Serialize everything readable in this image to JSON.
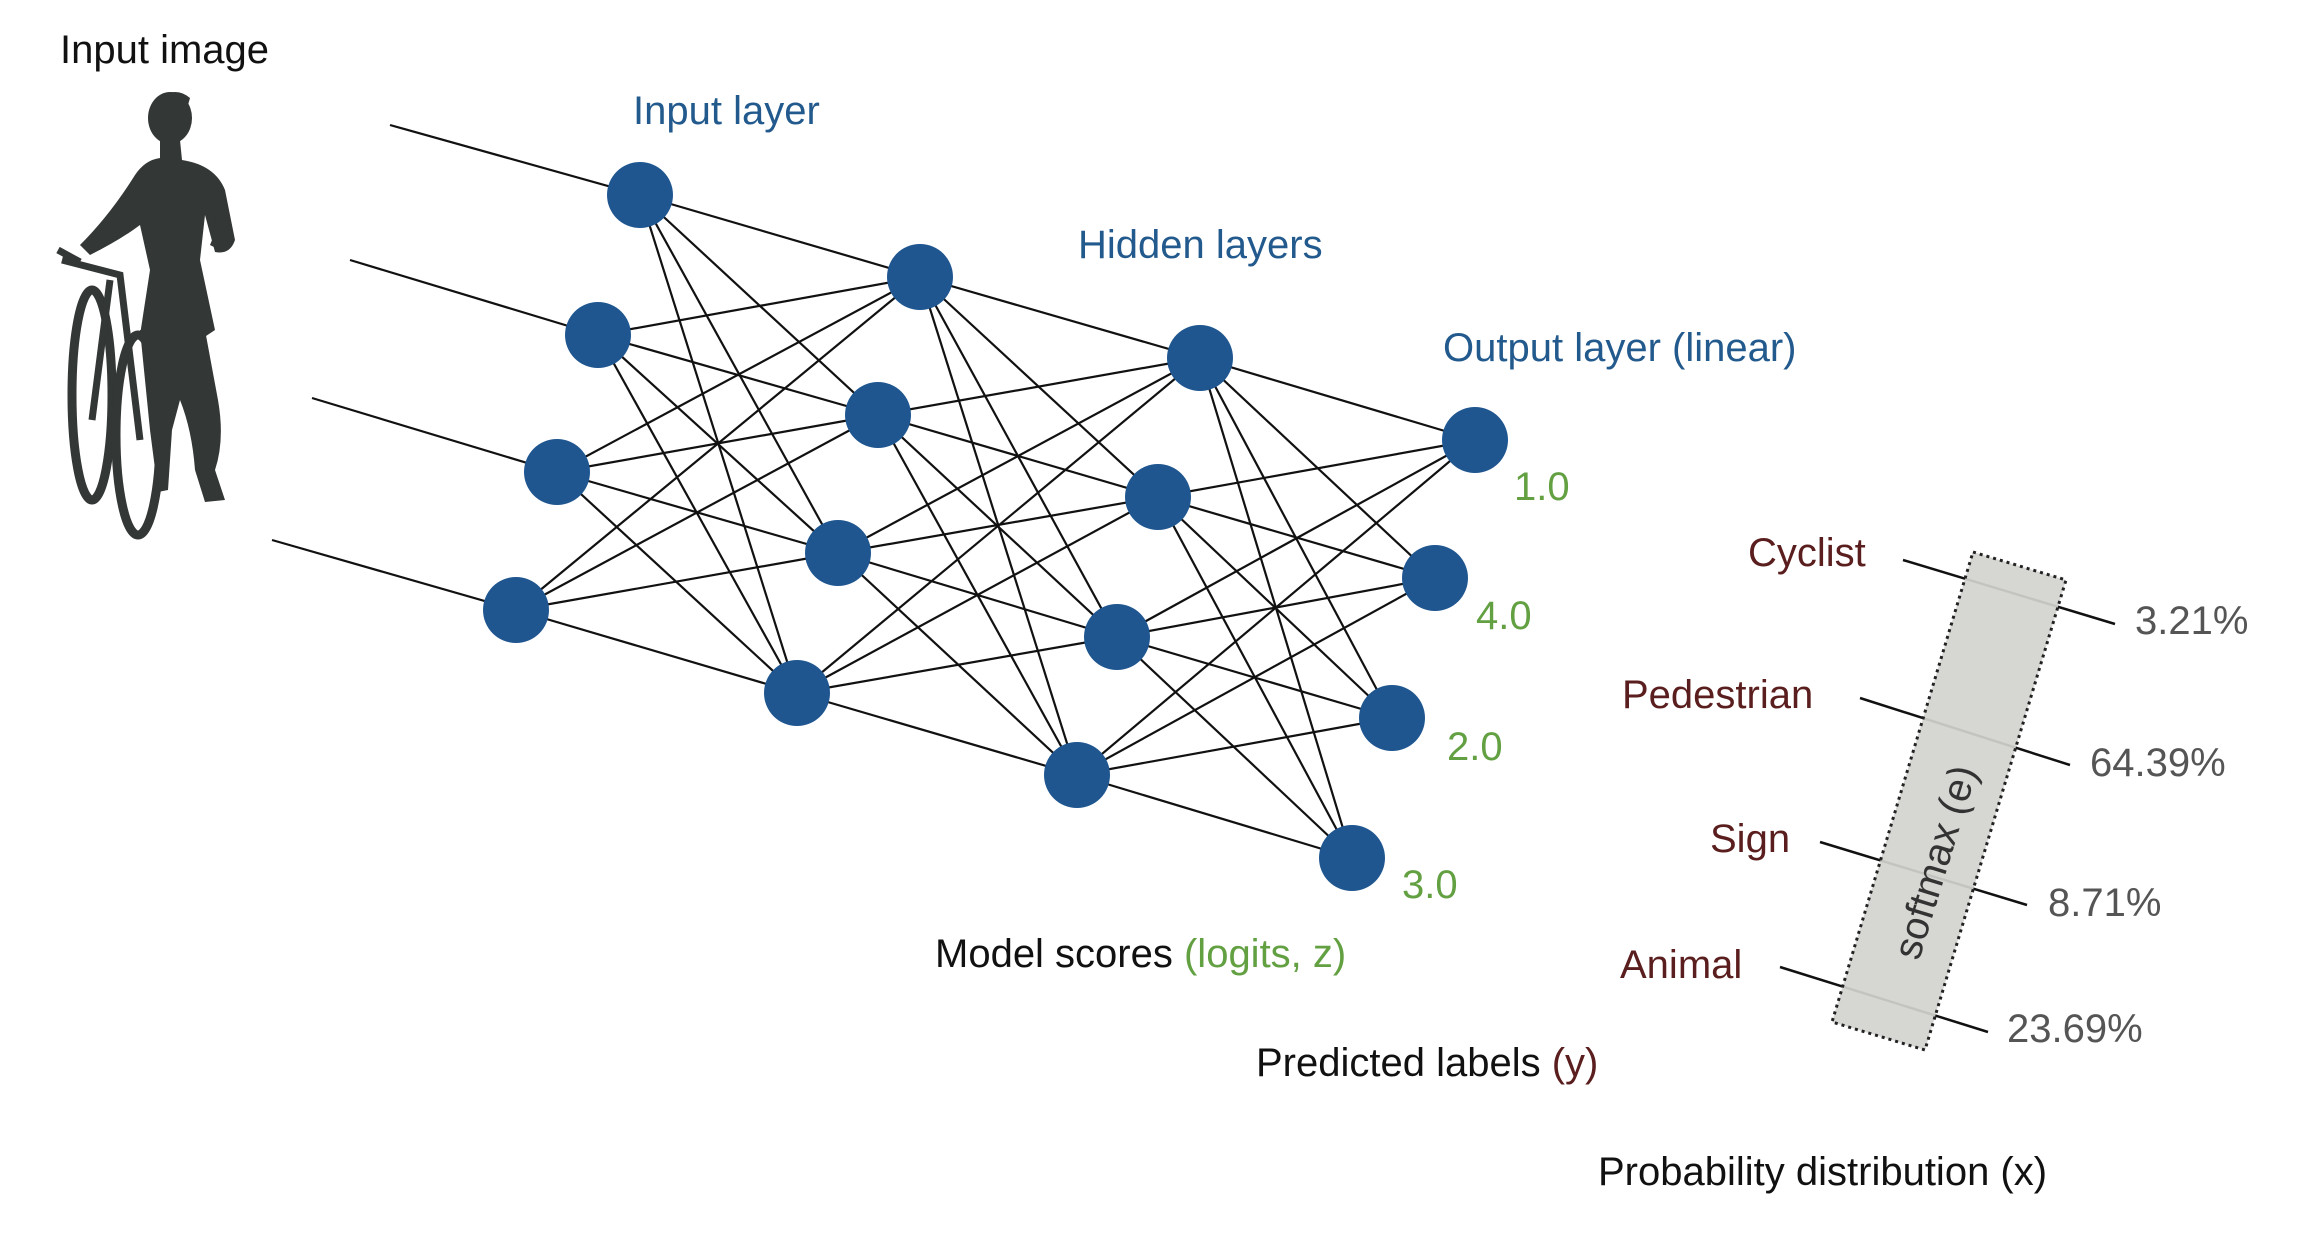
{
  "labels": {
    "input_image": "Input image",
    "input_layer": "Input layer",
    "hidden_layers": "Hidden layers",
    "output_layer": "Output layer (linear)",
    "model_scores_prefix": "Model scores ",
    "model_scores_suffix": "(logits, z)",
    "predicted_labels_prefix": "Predicted labels ",
    "predicted_labels_suffix": "(y)",
    "probability_distribution": "Probability distribution (x)",
    "softmax": "softmax (e)"
  },
  "logits": [
    "1.0",
    "4.0",
    "2.0",
    "3.0"
  ],
  "classes": [
    "Cyclist",
    "Pedestrian",
    "Sign",
    "Animal"
  ],
  "probabilities": [
    "3.21%",
    "64.39%",
    "8.71%",
    "23.69%"
  ],
  "colors": {
    "node": "#1f5690",
    "layer_label": "#235a8d",
    "logit": "#62a042",
    "class_label": "#5a1e1e",
    "probability": "#555555",
    "softmax_box": "#d3d3cf"
  },
  "network_layers": [
    4,
    4,
    4,
    4
  ]
}
